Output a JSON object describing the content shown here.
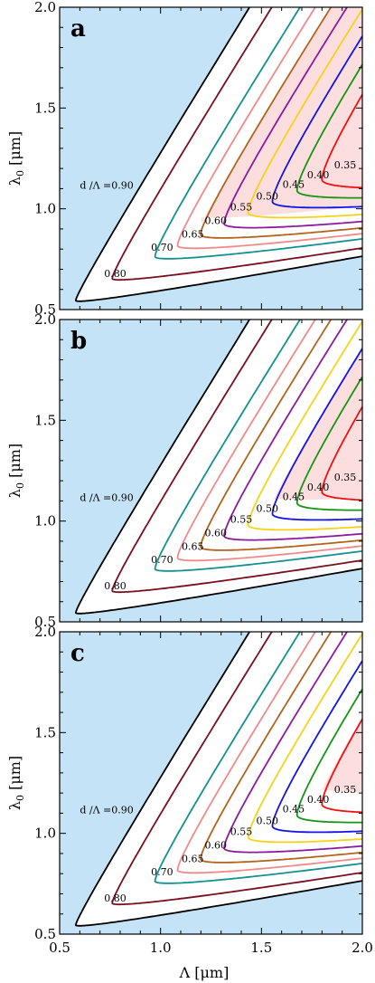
{
  "chart_data": {
    "type": "contour",
    "shared_xlabel": "Λ [μm]",
    "ylabel_main": "λ",
    "ylabel_sub": "0",
    "ylabel_unit": " [μm]",
    "xlim": [
      0.5,
      2.0
    ],
    "ylim": [
      0.5,
      2.0
    ],
    "xticks": [
      "0.5",
      "1.0",
      "1.5",
      "2.0"
    ],
    "yticks": [
      "0.5",
      "1.0",
      "1.5",
      "2.0"
    ],
    "background_color": "#c5e3f6",
    "region_color": "#fcdede",
    "contour_label_prefix": "d /Λ =",
    "contours": [
      {
        "label": "0.90",
        "color": "#000000",
        "d": 0.9
      },
      {
        "label": "0.80",
        "color": "#7a0f1f",
        "d": 0.8
      },
      {
        "label": "0.70",
        "color": "#12918f",
        "d": 0.7
      },
      {
        "label": "0.65",
        "color": "#f08a8a",
        "d": 0.65
      },
      {
        "label": "0.60",
        "color": "#b2631d",
        "d": 0.6
      },
      {
        "label": "0.55",
        "color": "#8b1a9c",
        "d": 0.55
      },
      {
        "label": "0.50",
        "color": "#f7d21a",
        "d": 0.5
      },
      {
        "label": "0.45",
        "color": "#1414e6",
        "d": 0.45
      },
      {
        "label": "0.40",
        "color": "#149614",
        "d": 0.4
      },
      {
        "label": "0.35",
        "color": "#ee1111",
        "d": 0.35
      }
    ],
    "panels": [
      {
        "label": "a",
        "pink_threshold": 0.62
      },
      {
        "label": "b",
        "pink_threshold": 0.47
      },
      {
        "label": "c",
        "pink_threshold": 0.37
      }
    ]
  }
}
